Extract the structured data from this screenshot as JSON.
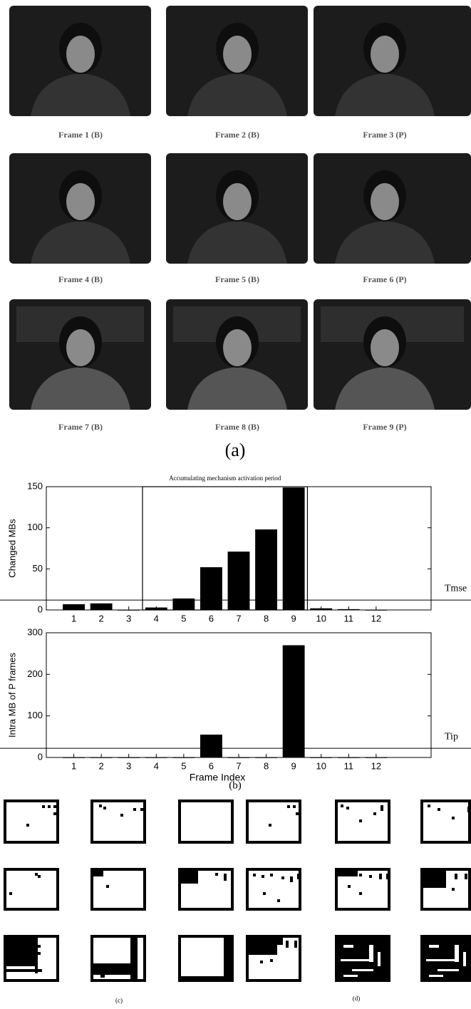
{
  "frames": [
    "Frame 1 (B)",
    "Frame 2 (B)",
    "Frame 3 (P)",
    "Frame 4 (B)",
    "Frame 5 (B)",
    "Frame 6 (P)",
    "Frame 7 (B)",
    "Frame 8 (B)",
    "Frame 9 (P)"
  ],
  "caption_a": "(a)",
  "chart_data": [
    {
      "type": "bar",
      "ylabel": "Changed MBs",
      "annotation": "Accumulating mechanism activation period",
      "highlight_xlim": [
        3.5,
        9.5
      ],
      "x": [
        1,
        2,
        3,
        4,
        5,
        6,
        7,
        8,
        9,
        10,
        11,
        12
      ],
      "values": [
        7,
        8,
        0,
        3,
        14,
        52,
        71,
        98,
        149,
        2,
        1,
        0
      ],
      "color": "#000000",
      "xlim": [
        0,
        14
      ],
      "xticks": [
        1,
        2,
        3,
        4,
        5,
        6,
        7,
        8,
        9,
        10,
        11,
        12
      ],
      "ylim": [
        0,
        150
      ],
      "yticks": [
        0,
        50,
        100,
        150
      ],
      "threshold": {
        "label": "Tmse",
        "value": 12
      }
    },
    {
      "type": "bar",
      "ylabel": "Intra MB of P frames",
      "xlabel": "Frame Index",
      "x": [
        1,
        2,
        3,
        4,
        5,
        6,
        7,
        8,
        9,
        10,
        11,
        12
      ],
      "values": [
        0,
        0,
        0,
        0,
        0,
        55,
        0,
        0,
        270,
        0,
        0,
        0
      ],
      "color": "#000000",
      "xlim": [
        0,
        14
      ],
      "xticks": [
        1,
        2,
        3,
        4,
        5,
        6,
        7,
        8,
        9,
        10,
        11,
        12
      ],
      "ylim": [
        0,
        300
      ],
      "yticks": [
        0,
        100,
        200,
        300
      ],
      "threshold": {
        "label": "Tip",
        "value": 22
      }
    }
  ],
  "caption_b": "(b)",
  "caption_c": "(c)",
  "caption_d": "(d)"
}
